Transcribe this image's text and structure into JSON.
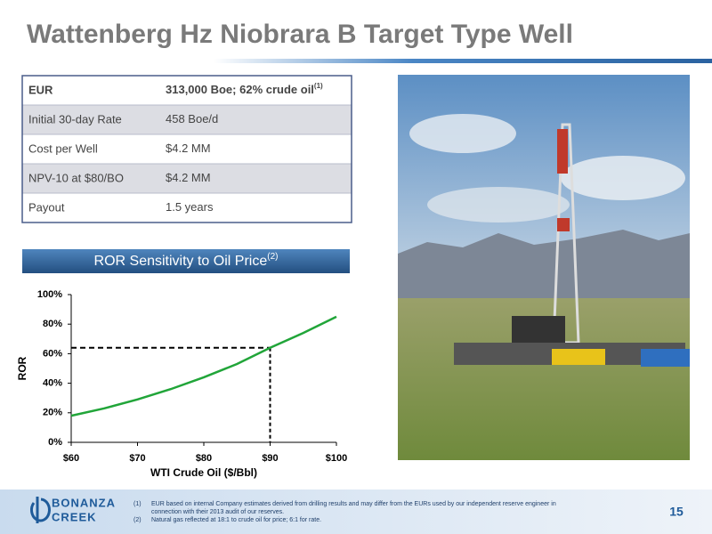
{
  "title": "Wattenberg Hz Niobrara B Target Type Well",
  "table": {
    "rows": [
      {
        "label": "EUR",
        "value": "313,000 Boe;  62% crude oil",
        "note": "(1)"
      },
      {
        "label": "Initial 30-day Rate",
        "value": "458 Boe/d"
      },
      {
        "label": "Cost per Well",
        "value": "$4.2 MM"
      },
      {
        "label": "NPV-10 at $80/BO",
        "value": "$4.2 MM"
      },
      {
        "label": "Payout",
        "value": "1.5 years"
      }
    ]
  },
  "banner": {
    "text": "ROR Sensitivity to Oil Price",
    "note": "(2)"
  },
  "chart_data": {
    "type": "line",
    "x_label": "WTI Crude Oil ($/Bbl)",
    "y_label": "ROR",
    "x": [
      60,
      65,
      70,
      75,
      80,
      85,
      90,
      95,
      100
    ],
    "series": [
      {
        "name": "ROR",
        "color": "#21a539",
        "values": [
          18,
          23,
          29,
          36,
          44,
          53,
          64,
          74,
          85
        ]
      }
    ],
    "xlim": [
      60,
      100
    ],
    "xticks": [
      {
        "value": 60,
        "label": "$60"
      },
      {
        "value": 70,
        "label": "$70"
      },
      {
        "value": 80,
        "label": "$80"
      },
      {
        "value": 90,
        "label": "$90"
      },
      {
        "value": 100,
        "label": "$100"
      }
    ],
    "ylim": [
      0,
      100
    ],
    "yticks": [
      {
        "value": 0,
        "label": "0%"
      },
      {
        "value": 20,
        "label": "20%"
      },
      {
        "value": 40,
        "label": "40%"
      },
      {
        "value": 60,
        "label": "60%"
      },
      {
        "value": 80,
        "label": "80%"
      },
      {
        "value": 100,
        "label": "100%"
      }
    ],
    "highlight": {
      "x": 90,
      "y": 64
    }
  },
  "footer": {
    "logo_top": "BONANZA",
    "logo_bottom": "CREEK",
    "notes": [
      {
        "marker": "(1)",
        "text": "EUR based on internal Company estimates derived from drilling results and may differ from the EURs used by our independent reserve engineer in",
        "text2": "connection with their 2013 audit of our reserves."
      },
      {
        "marker": "(2)",
        "text": "Natural gas reflected at 18:1 to crude oil for price; 6:1 for rate."
      }
    ],
    "page": "15"
  }
}
